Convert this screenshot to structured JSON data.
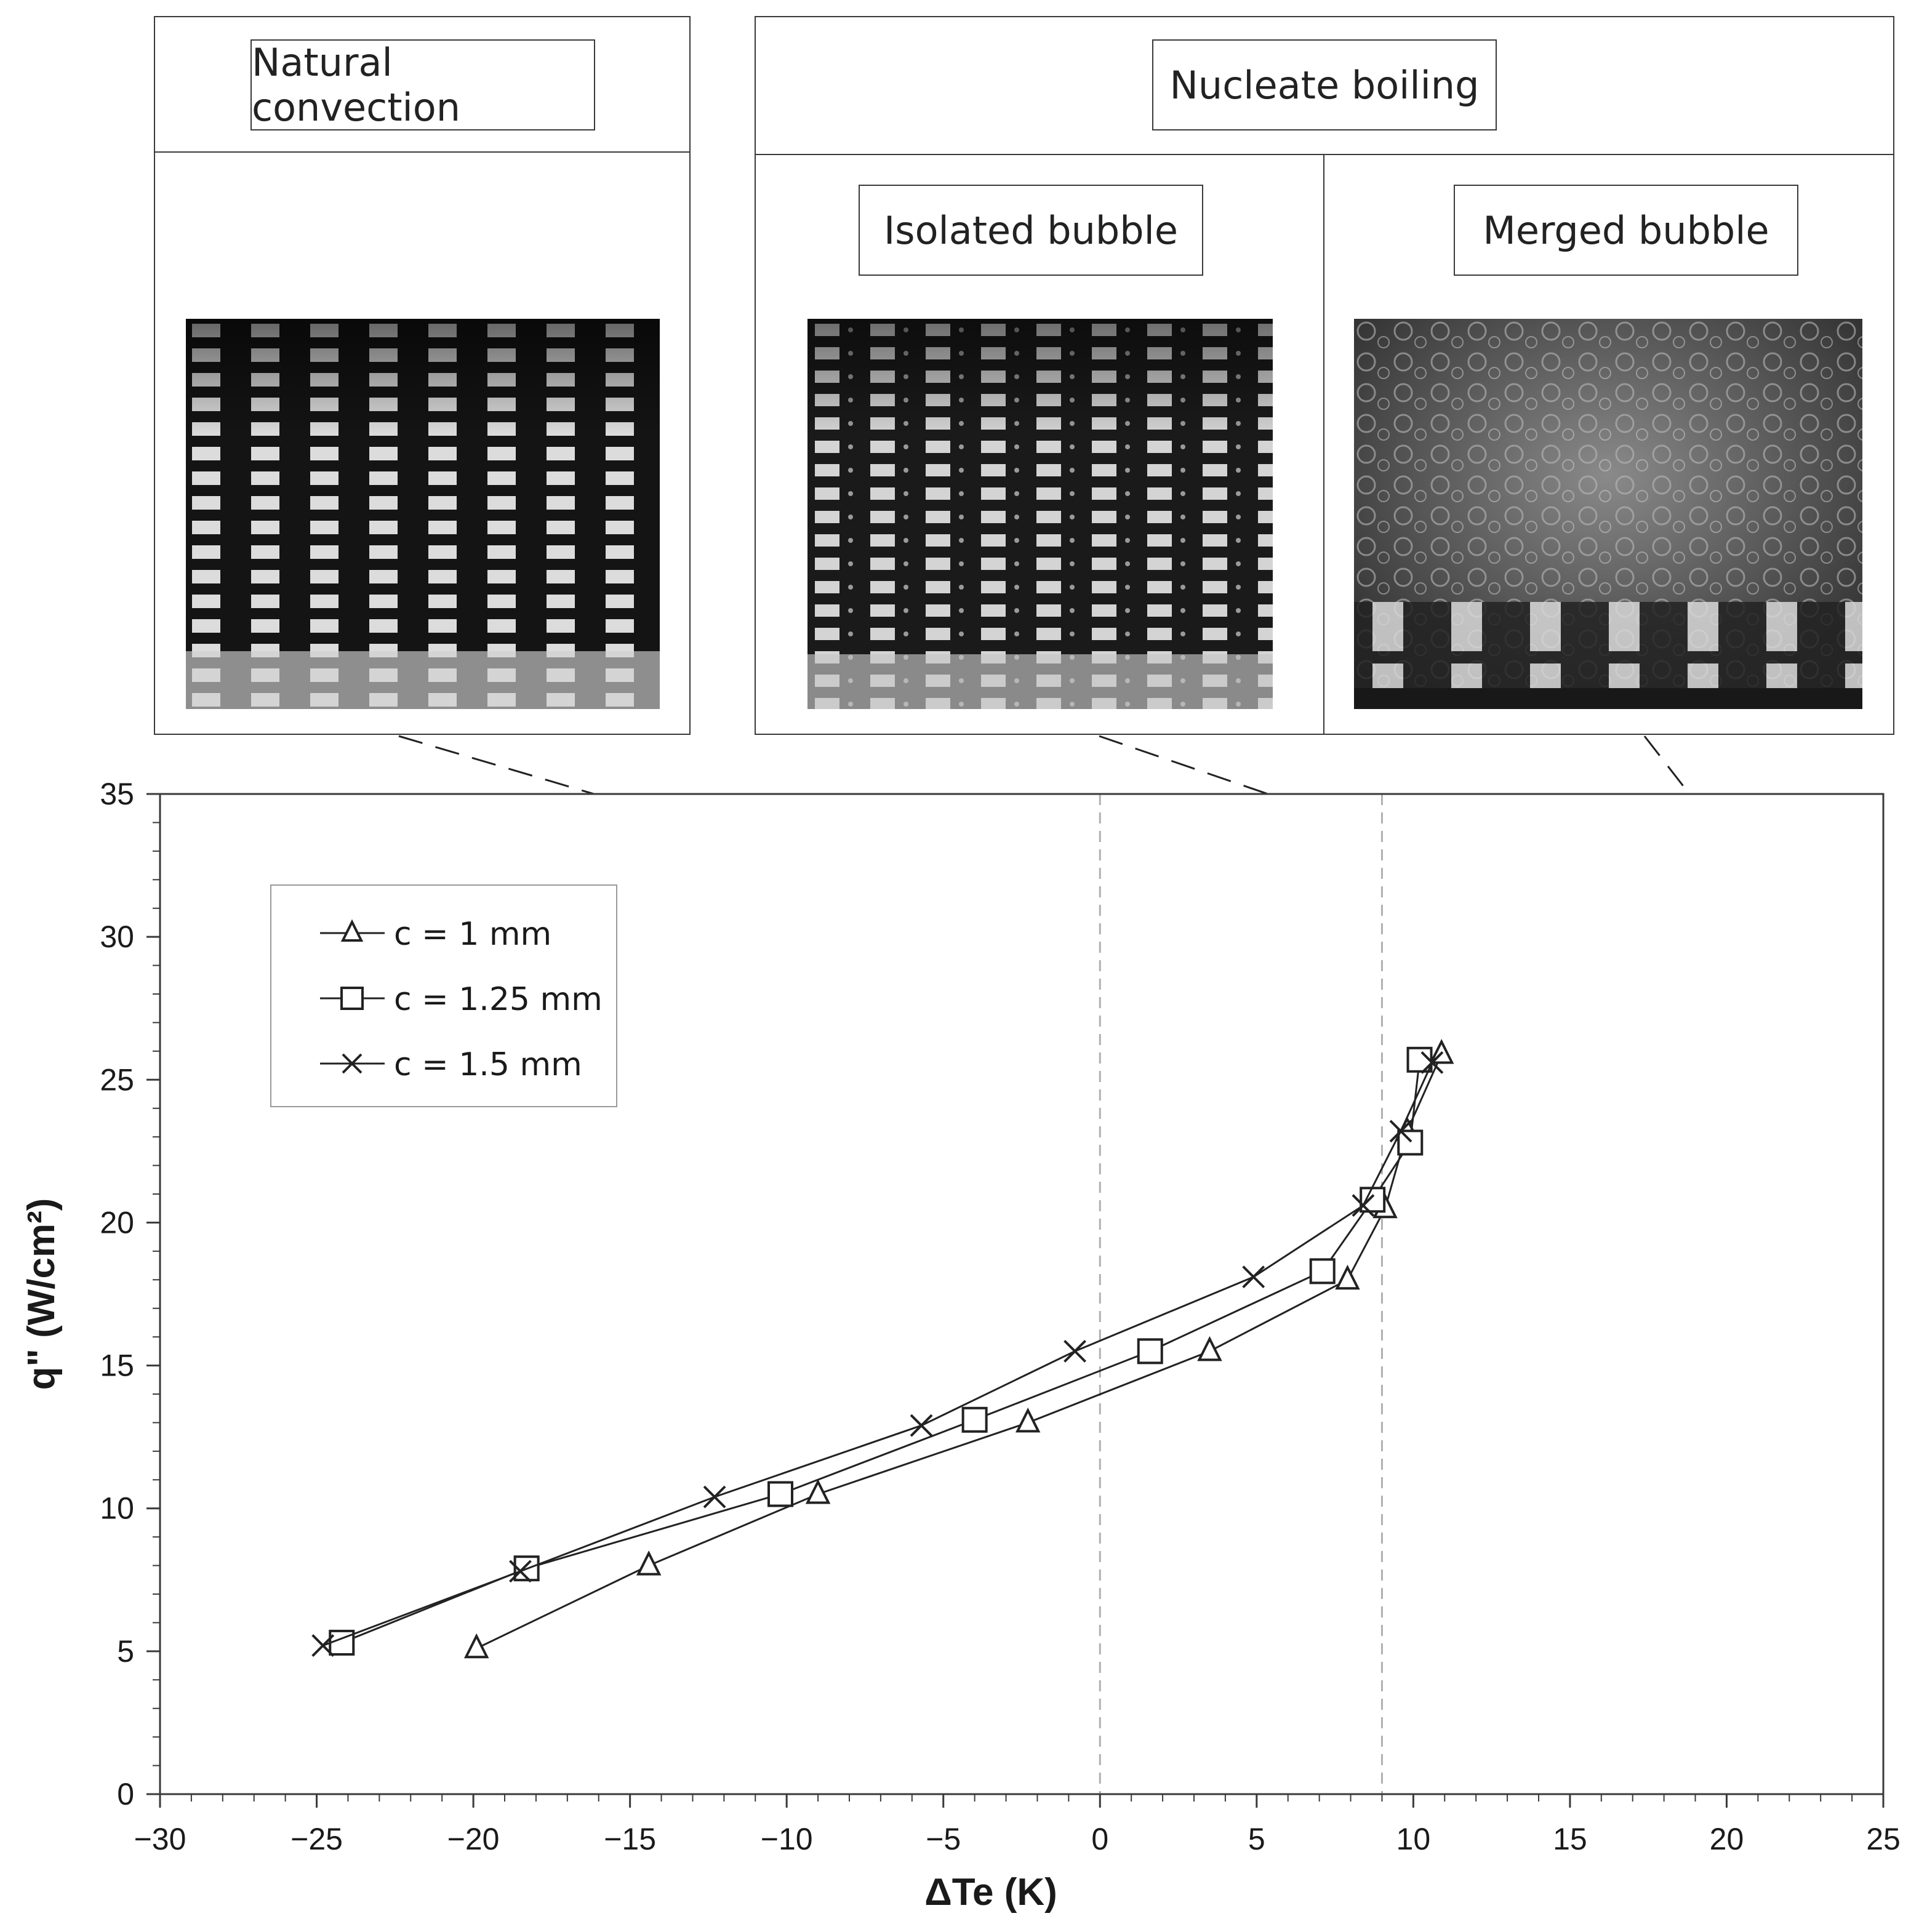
{
  "panels": {
    "natural": {
      "label": "Natural convection"
    },
    "nucleate": {
      "label": "Nucleate boiling"
    },
    "isolated": {
      "label": "Isolated bubble"
    },
    "merged": {
      "label": "Merged bubble"
    }
  },
  "colors": {
    "line": "#222222",
    "frame": "#3a3a3a",
    "guide": "#b0b0b0"
  },
  "chart_data": {
    "type": "line",
    "xlabel": "ΔTe (K)",
    "ylabel": "q\" (W/cm²)",
    "xlim": [
      -30,
      25
    ],
    "ylim": [
      0,
      35
    ],
    "xticks": [
      -30,
      -25,
      -20,
      -15,
      -10,
      -5,
      0,
      5,
      10,
      15,
      20,
      25
    ],
    "xtick_labels": [
      "−30",
      "−25",
      "−20",
      "−15",
      "−10",
      "−5",
      "0",
      "5",
      "10",
      "15",
      "20",
      "25"
    ],
    "yticks": [
      0,
      5,
      10,
      15,
      20,
      25,
      30,
      35
    ],
    "ytick_labels": [
      "0",
      "5",
      "10",
      "15",
      "20",
      "25",
      "30",
      "35"
    ],
    "grid": false,
    "legend_position": "top-left",
    "reference_lines_x": [
      0,
      9
    ],
    "series": [
      {
        "name": "c = 1 mm",
        "marker": "triangle",
        "x": [
          -19.9,
          -14.4,
          -9.0,
          -2.3,
          3.5,
          7.9,
          9.1,
          9.8,
          10.9
        ],
        "y": [
          5.1,
          8.0,
          10.5,
          13.0,
          15.5,
          18.0,
          20.5,
          23.2,
          25.9
        ]
      },
      {
        "name": "c = 1.25 mm",
        "marker": "square",
        "x": [
          -24.2,
          -18.3,
          -10.2,
          -4.0,
          1.6,
          7.1,
          8.7,
          9.9,
          10.2
        ],
        "y": [
          5.3,
          7.9,
          10.5,
          13.1,
          15.5,
          18.3,
          20.8,
          22.8,
          25.7
        ]
      },
      {
        "name": "c = 1.5 mm",
        "marker": "x",
        "x": [
          -24.8,
          -18.5,
          -12.3,
          -5.7,
          -0.8,
          4.9,
          8.4,
          9.6,
          10.6
        ],
        "y": [
          5.2,
          7.8,
          10.4,
          12.9,
          15.5,
          18.1,
          20.6,
          23.2,
          25.6
        ]
      }
    ]
  }
}
